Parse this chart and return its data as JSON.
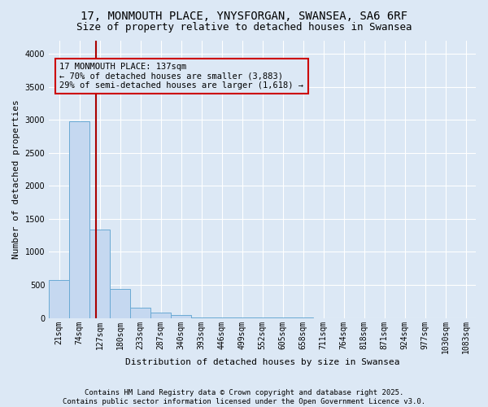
{
  "title": "17, MONMOUTH PLACE, YNYSFORGAN, SWANSEA, SA6 6RF",
  "subtitle": "Size of property relative to detached houses in Swansea",
  "xlabel": "Distribution of detached houses by size in Swansea",
  "ylabel": "Number of detached properties",
  "bar_color": "#c5d8f0",
  "bar_edge_color": "#6aaad4",
  "background_color": "#dce8f5",
  "grid_color": "#ffffff",
  "annotation_box_color": "#cc0000",
  "vline_color": "#aa0000",
  "categories": [
    "21sqm",
    "74sqm",
    "127sqm",
    "180sqm",
    "233sqm",
    "287sqm",
    "340sqm",
    "393sqm",
    "446sqm",
    "499sqm",
    "552sqm",
    "605sqm",
    "658sqm",
    "711sqm",
    "764sqm",
    "818sqm",
    "871sqm",
    "924sqm",
    "977sqm",
    "1030sqm",
    "1083sqm"
  ],
  "values": [
    580,
    2980,
    1340,
    435,
    160,
    80,
    45,
    10,
    5,
    3,
    2,
    1,
    1,
    0,
    0,
    0,
    0,
    0,
    0,
    0,
    0
  ],
  "vline_position": 1.82,
  "annotation_text": "17 MONMOUTH PLACE: 137sqm\n← 70% of detached houses are smaller (3,883)\n29% of semi-detached houses are larger (1,618) →",
  "ylim": [
    0,
    4200
  ],
  "yticks": [
    0,
    500,
    1000,
    1500,
    2000,
    2500,
    3000,
    3500,
    4000
  ],
  "footer_text": "Contains HM Land Registry data © Crown copyright and database right 2025.\nContains public sector information licensed under the Open Government Licence v3.0.",
  "title_fontsize": 10,
  "subtitle_fontsize": 9,
  "xlabel_fontsize": 8,
  "ylabel_fontsize": 8,
  "tick_fontsize": 7,
  "annotation_fontsize": 7.5,
  "footer_fontsize": 6.5
}
